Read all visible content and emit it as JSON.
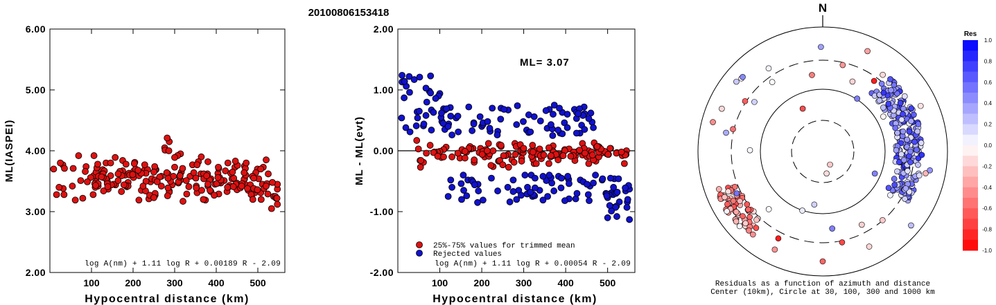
{
  "figure": {
    "title": "20100806153418"
  },
  "chart_data": [
    {
      "type": "scatter",
      "xlabel": "Hypocentral distance (km)",
      "ylabel": "ML(IASPEI)",
      "xlim": [
        0,
        565
      ],
      "ylim": [
        2.0,
        6.0
      ],
      "xticks": [
        100,
        200,
        300,
        400,
        500
      ],
      "yticks": [
        "2.00",
        "3.00",
        "4.00",
        "5.00",
        "6.00"
      ],
      "formula": "log A(nm) + 1.11 log R + 0.00189 R - 2.09",
      "grid": false,
      "series": [
        {
          "color": "#dd1111",
          "points": []
        }
      ]
    },
    {
      "type": "scatter",
      "xlabel": "Hypocentral distance (km)",
      "ylabel": "ML - ML(evt)",
      "xlim": [
        0,
        565
      ],
      "ylim": [
        -2.0,
        2.0
      ],
      "xticks": [
        100,
        200,
        300,
        400,
        500
      ],
      "yticks": [
        "-2.00",
        "-1.00",
        "0.00",
        "1.00",
        "2.00"
      ],
      "zero_line": true,
      "annotation": "ML= 3.07",
      "formula": "log A(nm) + 1.11 log R + 0.00054 R - 2.09",
      "grid": false,
      "legend": {
        "placement": "bottom-left",
        "entries": [
          {
            "label": "25%-75% values for trimmed mean",
            "color": "#dd1111"
          },
          {
            "label": "Rejected values",
            "color": "#1111cc"
          }
        ]
      },
      "series": [
        {
          "color": "#dd1111",
          "points": []
        },
        {
          "color": "#1111cc",
          "points": []
        }
      ]
    },
    {
      "type": "scatter",
      "subtype": "polar",
      "north_label": "N",
      "caption_line1": "Residuals as a function of azimuth and distance",
      "caption_line2": "Center (10km), Circle at 30, 100, 300 and 1000 km",
      "rings_km": [
        30,
        100,
        300,
        1000
      ],
      "points": []
    },
    {
      "type": "heatmap",
      "subtype": "colorbar",
      "label": "Res",
      "range": [
        -1.0,
        1.0
      ],
      "tick_labels": [
        "1.0",
        "0.8",
        "0.6",
        "0.4",
        "0.2",
        "0.0",
        "-0.2",
        "-0.4",
        "-0.6",
        "-0.8",
        "-1.0"
      ],
      "color_max": "#0000ff",
      "color_zero": "#ffffff",
      "color_min": "#ff0000"
    }
  ]
}
